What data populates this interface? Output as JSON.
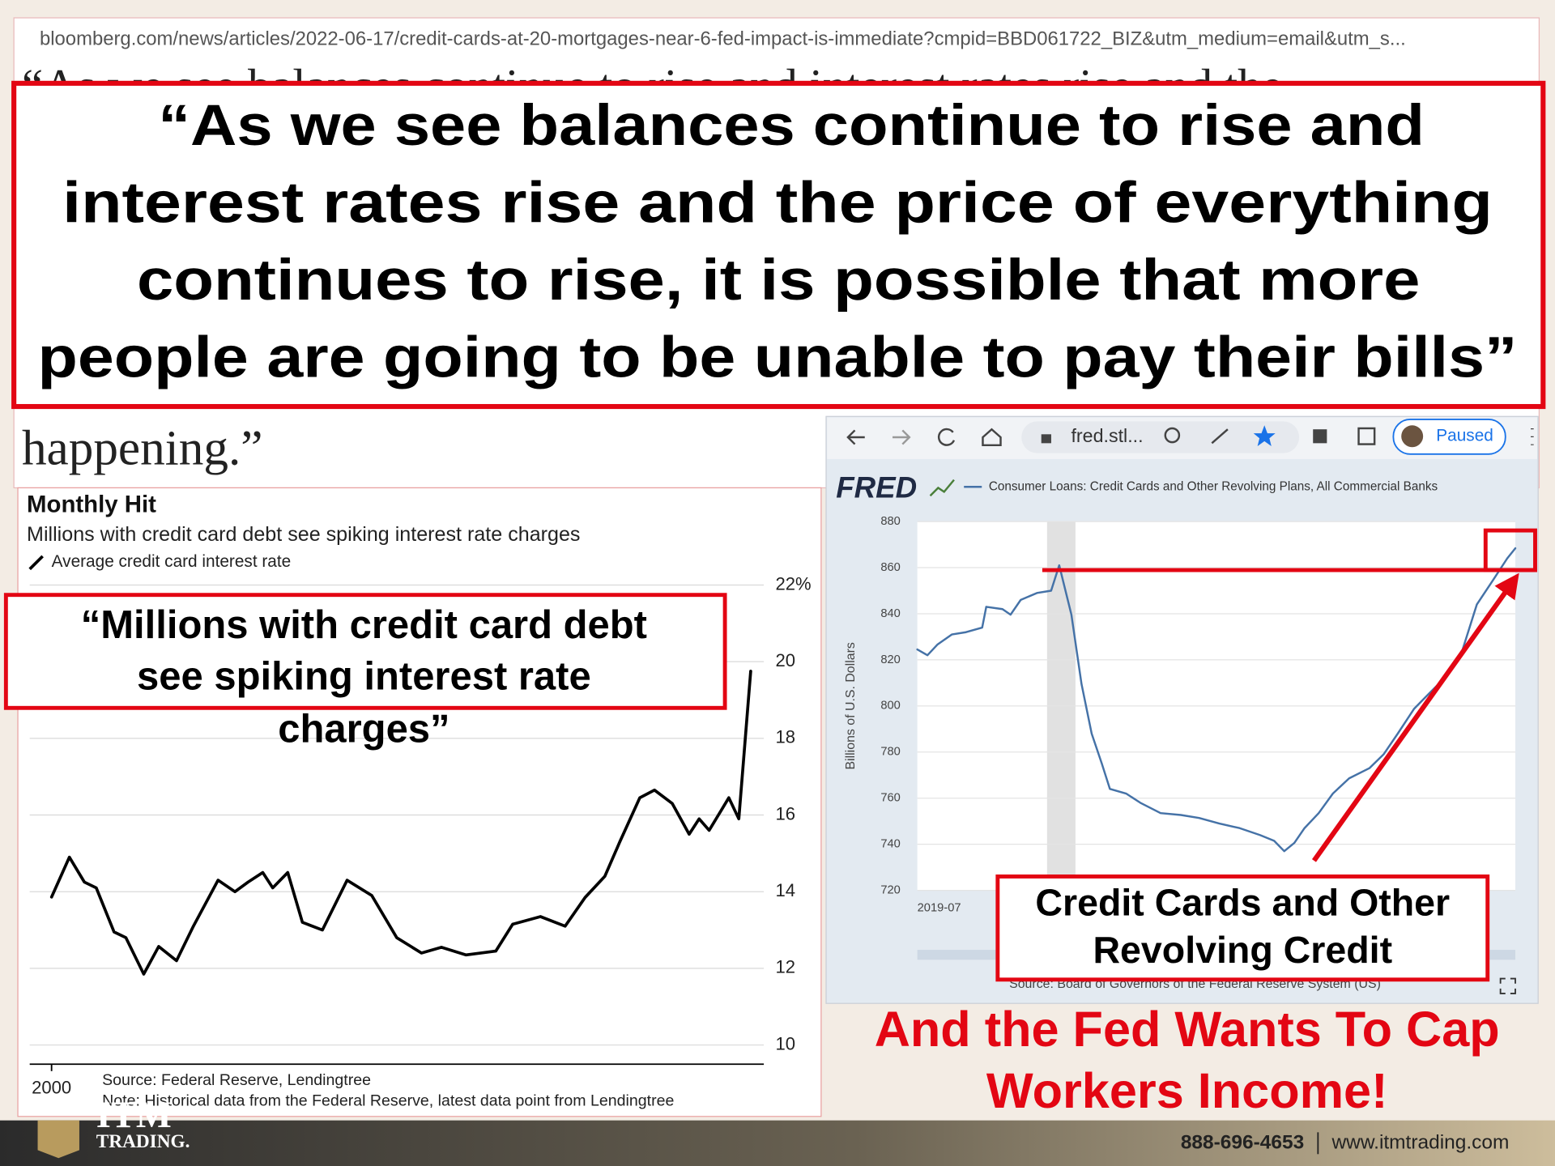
{
  "url": "bloomberg.com/news/articles/2022-06-17/credit-cards-at-20-mortgages-near-6-fed-impact-is-immediate?cmpid=BBD061722_BIZ&utm_medium=email&utm_s...",
  "behind_text": "“As we see balances continue to rise and interest rates rise and the",
  "quote_lines": [
    "“As we see balances continue to rise and",
    "interest rates rise and the price of everything",
    "continues to rise, it is possible that more",
    "people are going to be unable to pay their bills”"
  ],
  "happening": "happening.”",
  "callout_left": [
    "“Millions with credit card debt",
    "see spiking interest rate",
    "charges”"
  ],
  "browser": {
    "address": "fred.stl...",
    "status": "Paused"
  },
  "callout_right": [
    "Credit Cards and Other",
    "Revolving Credit"
  ],
  "headline": [
    "And the Fed Wants To Cap",
    "Workers Income!"
  ],
  "footer": {
    "logo_top": "ITM",
    "logo_bottom": "TRADING.",
    "phone": "888-696-4653",
    "website": "www.itmtrading.com"
  },
  "chart_data": [
    {
      "type": "line",
      "title": "Monthly Hit",
      "subtitle": "Millions with credit card debt see spiking interest rate charges",
      "source": "Source: Federal Reserve, Lendingtree",
      "note": "Note: Historical data from the Federal Reserve, latest data point from Lendingtree",
      "x": [
        2000.0,
        2000.57,
        2001.05,
        2001.43,
        2002.0,
        2002.38,
        2002.95,
        2003.43,
        2004.0,
        2004.54,
        2005.33,
        2005.87,
        2006.29,
        2006.76,
        2007.08,
        2007.56,
        2008.03,
        2008.67,
        2009.46,
        2010.25,
        2011.05,
        2011.84,
        2012.48,
        2013.27,
        2014.22,
        2014.76,
        2015.65,
        2016.44,
        2017.08,
        2017.71,
        2018.19,
        2018.83,
        2019.3,
        2019.87,
        2020.41,
        2020.73,
        2021.05,
        2021.68,
        2022.0,
        2022.38
      ],
      "series": [
        {
          "name": "Average credit card interest rate",
          "color": "#000000",
          "values": [
            13.86,
            14.9,
            14.25,
            14.1,
            12.95,
            12.8,
            11.85,
            12.57,
            12.2,
            13.1,
            14.3,
            14.0,
            14.25,
            14.5,
            14.1,
            14.5,
            13.2,
            13.0,
            14.3,
            13.9,
            12.8,
            12.4,
            12.55,
            12.35,
            12.45,
            13.15,
            13.35,
            13.1,
            13.85,
            14.4,
            15.3,
            16.45,
            16.65,
            16.3,
            15.5,
            15.9,
            15.6,
            16.45,
            15.9,
            19.75
          ]
        }
      ],
      "xlim": [
        1999.3,
        2022.8
      ],
      "xticks": [
        2000
      ],
      "ylim": [
        9.5,
        22.5
      ],
      "yticks": [
        10,
        12,
        14,
        16,
        18,
        20,
        {
          "value": 22,
          "label": "22%"
        }
      ],
      "grid": true
    },
    {
      "type": "line",
      "logo": "FRED",
      "ylabel": "Billions of U.S. Dollars",
      "source": "Source: Board of Governors of the Federal Reserve System (US)",
      "x": [
        2019.5,
        2019.55,
        2019.6,
        2019.67,
        2019.74,
        2019.82,
        2019.84,
        2019.92,
        2019.96,
        2020.01,
        2020.09,
        2020.16,
        2020.2,
        2020.26,
        2020.31,
        2020.36,
        2020.41,
        2020.45,
        2020.53,
        2020.6,
        2020.7,
        2020.8,
        2020.89,
        2020.99,
        2021.09,
        2021.19,
        2021.26,
        2021.31,
        2021.36,
        2021.41,
        2021.48,
        2021.55,
        2021.63,
        2021.73,
        2021.8,
        2021.87,
        2021.95,
        2022.02,
        2022.12,
        2022.19,
        2022.26,
        2022.34,
        2022.41,
        2022.45
      ],
      "series": [
        {
          "name": "Consumer Loans: Credit Cards and Other Revolving Plans, All Commercial Banks",
          "color": "#4572a7",
          "values": [
            824.5,
            822,
            826.7,
            831,
            832,
            834,
            843,
            842,
            839.6,
            846,
            849,
            850,
            861,
            839.6,
            809.5,
            788,
            775,
            764,
            762,
            758,
            753.5,
            752.7,
            751.4,
            749,
            747,
            744,
            741.5,
            737,
            740.6,
            747,
            753.5,
            762,
            768.6,
            773,
            779,
            788,
            798.7,
            805,
            813.8,
            824.5,
            844,
            854.6,
            864,
            868.4
          ]
        }
      ],
      "shade_x": [
        2020.14,
        2020.28
      ],
      "xlim": [
        2019.5,
        2022.45
      ],
      "xticks": [
        {
          "value": 2019.5,
          "label": "2019-07"
        }
      ],
      "ylim": [
        720,
        880
      ],
      "yticks": [
        720,
        740,
        760,
        780,
        800,
        820,
        840,
        860,
        880
      ],
      "grid": true
    }
  ]
}
